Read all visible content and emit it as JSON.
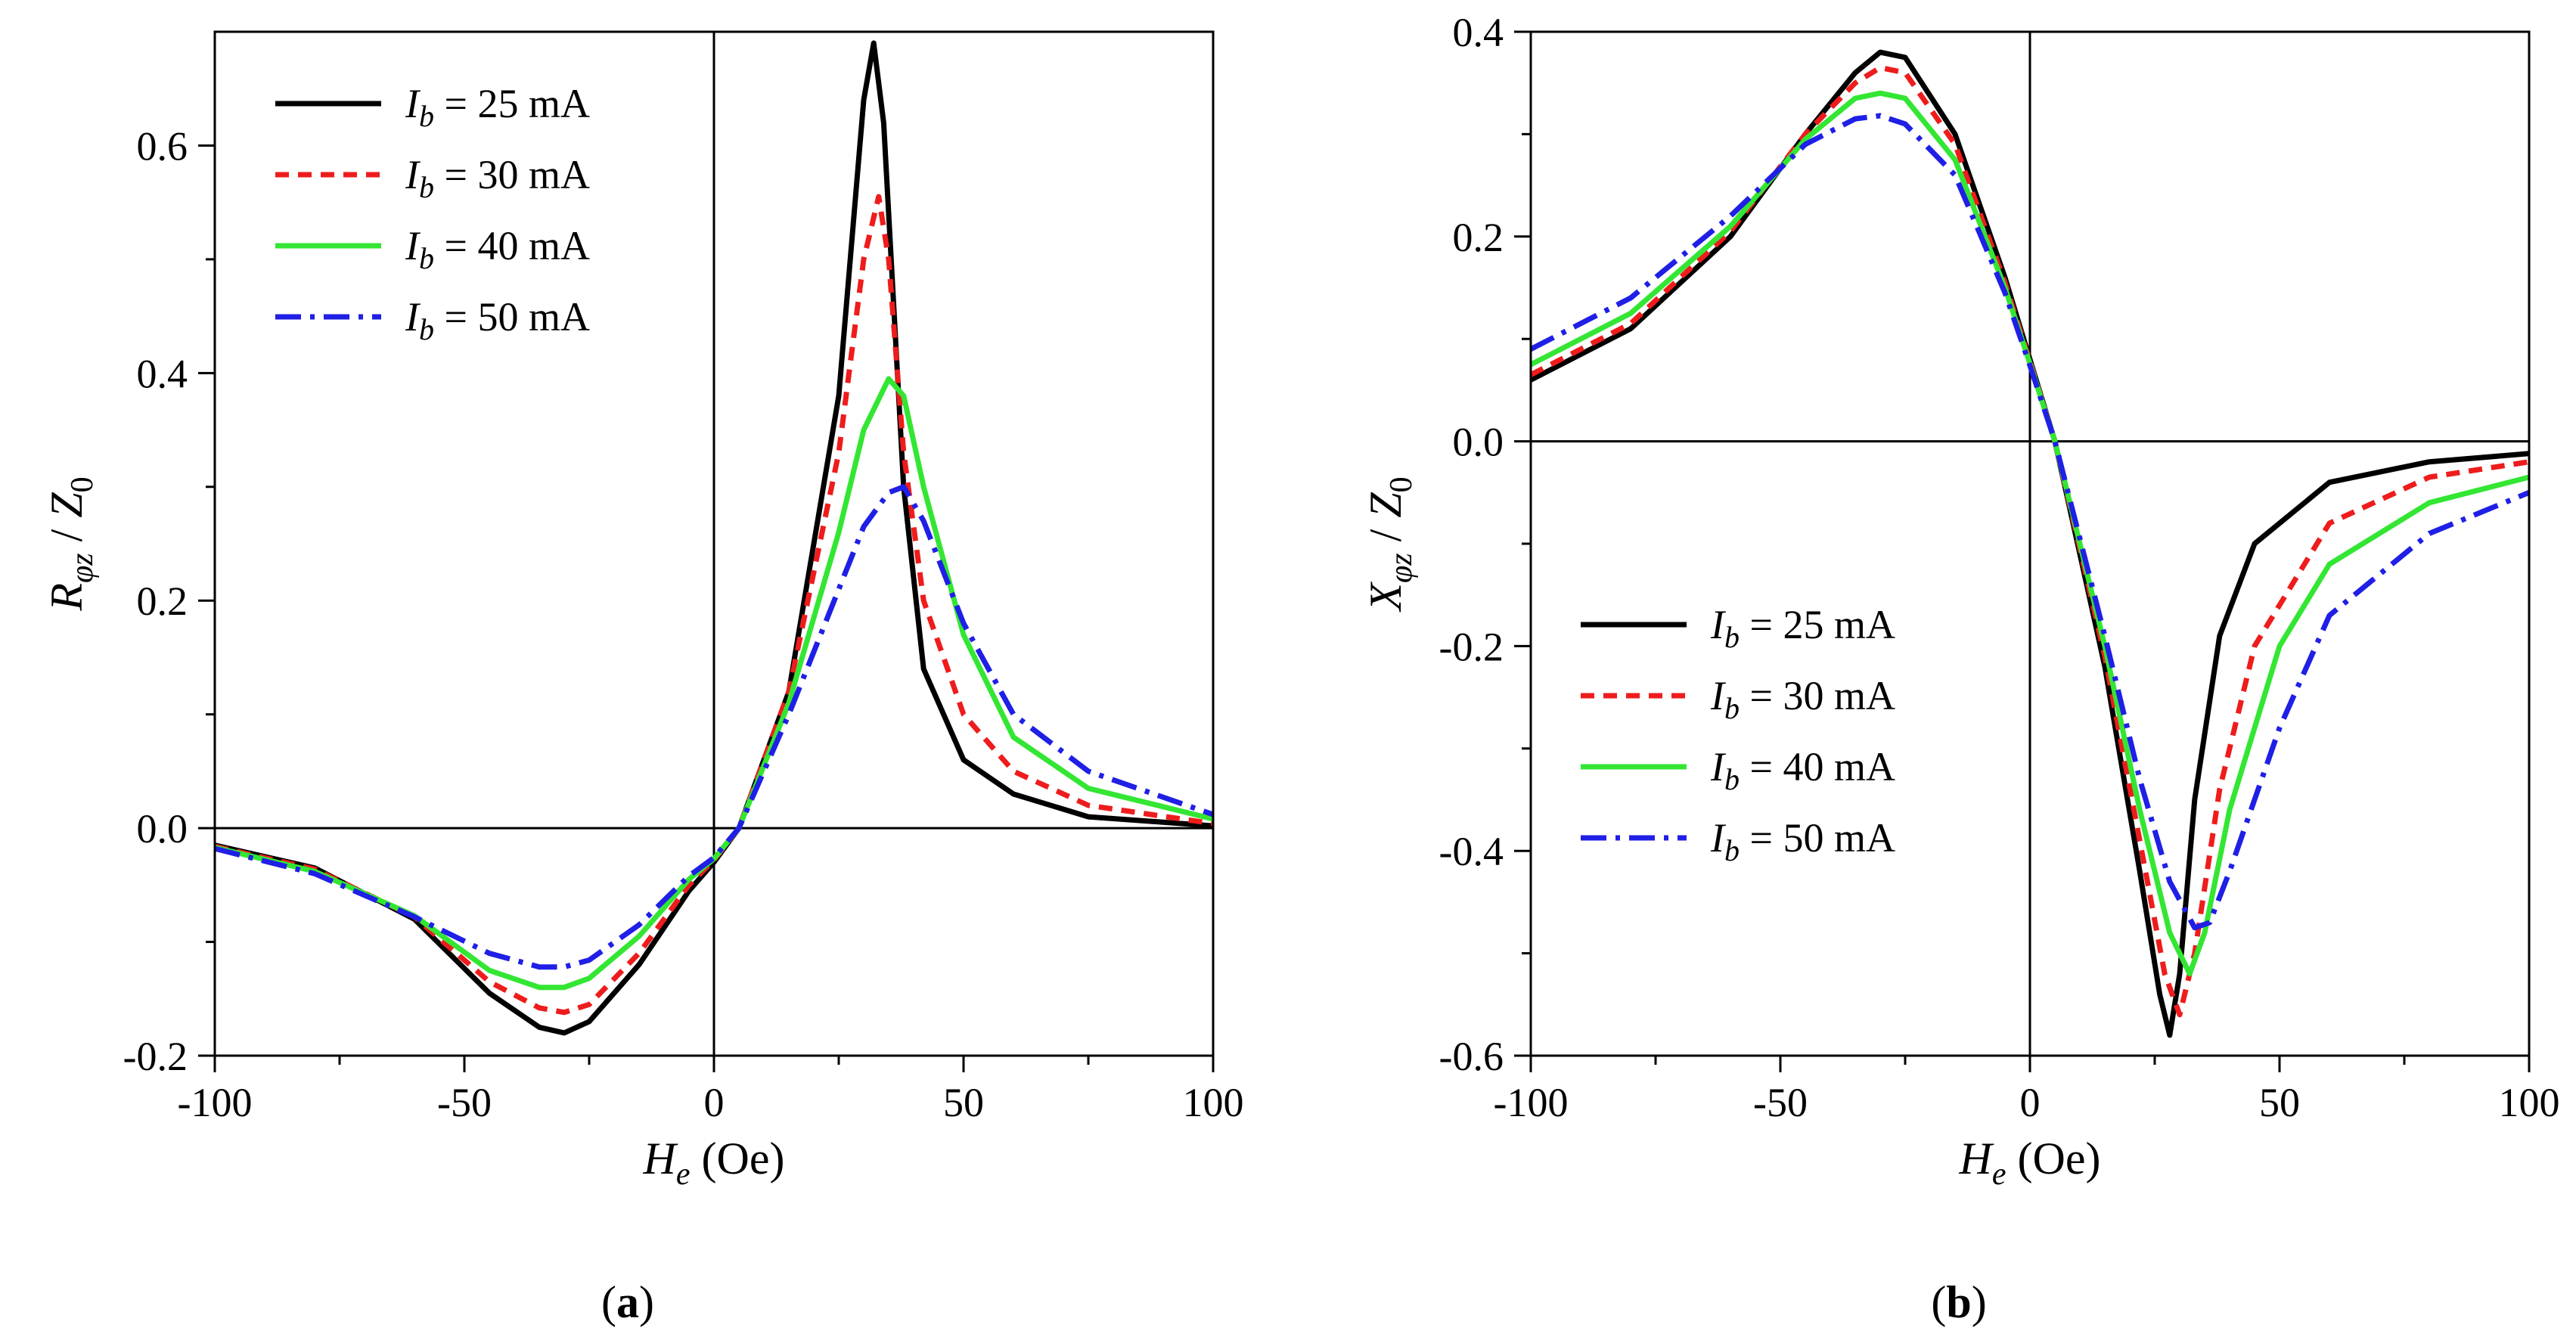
{
  "x_axis_title": {
    "symbol": "H",
    "sub": "e",
    "unit": "(Oe)"
  },
  "panels": [
    {
      "id": "a",
      "label_open": "(",
      "label_letter": "a",
      "label_close": ")",
      "y_axis_title": {
        "symbol": "R",
        "sub": "φz",
        "denom": "Z",
        "denom_sub": "0"
      }
    },
    {
      "id": "b",
      "label_open": "(",
      "label_letter": "b",
      "label_close": ")",
      "y_axis_title": {
        "symbol": "X",
        "sub": "φz",
        "denom": "Z",
        "denom_sub": "0"
      }
    }
  ],
  "legend": {
    "entries": [
      {
        "symbol": "I",
        "sub": "b",
        "value": " = 25 mA"
      },
      {
        "symbol": "I",
        "sub": "b",
        "value": " = 30 mA"
      },
      {
        "symbol": "I",
        "sub": "b",
        "value": " = 40 mA"
      },
      {
        "symbol": "I",
        "sub": "b",
        "value": " = 50 mA"
      }
    ]
  },
  "series_styles": [
    {
      "color": "#000000",
      "dash": "solid"
    },
    {
      "color": "#ee1c1c",
      "dash": "dash"
    },
    {
      "color": "#33e633",
      "dash": "solid"
    },
    {
      "color": "#1f1fe6",
      "dash": "dashdot"
    }
  ],
  "chart_data": [
    {
      "type": "line",
      "xlim": [
        -100,
        100
      ],
      "ylim": [
        -0.2,
        0.7
      ],
      "xticks": [
        -100,
        -50,
        0,
        50,
        100
      ],
      "xtick_labels": [
        "-100",
        "-50",
        "0",
        "50",
        "100"
      ],
      "yticks": [
        -0.2,
        0.0,
        0.2,
        0.4,
        0.6
      ],
      "ytick_labels": [
        "-0.2",
        "0.0",
        "0.2",
        "0.4",
        "0.6"
      ],
      "grid": false,
      "legend_position": "top-left",
      "series": [
        {
          "name": "Ib = 25 mA",
          "x": [
            -100,
            -80,
            -60,
            -45,
            -35,
            -30,
            -25,
            -15,
            -5,
            0,
            5,
            15,
            25,
            30,
            32,
            34,
            38,
            42,
            50,
            60,
            75,
            100
          ],
          "y": [
            -0.015,
            -0.035,
            -0.08,
            -0.145,
            -0.175,
            -0.18,
            -0.17,
            -0.12,
            -0.055,
            -0.03,
            0.0,
            0.12,
            0.38,
            0.64,
            0.69,
            0.62,
            0.3,
            0.14,
            0.06,
            0.03,
            0.01,
            0.002
          ]
        },
        {
          "name": "Ib = 30 mA",
          "x": [
            -100,
            -80,
            -60,
            -45,
            -35,
            -30,
            -25,
            -15,
            -5,
            0,
            5,
            15,
            25,
            30,
            33,
            35,
            38,
            42,
            50,
            60,
            75,
            100
          ],
          "y": [
            -0.016,
            -0.036,
            -0.078,
            -0.135,
            -0.158,
            -0.162,
            -0.155,
            -0.11,
            -0.05,
            -0.028,
            0.0,
            0.12,
            0.33,
            0.5,
            0.555,
            0.5,
            0.33,
            0.2,
            0.1,
            0.05,
            0.02,
            0.004
          ]
        },
        {
          "name": "Ib = 40 mA",
          "x": [
            -100,
            -80,
            -60,
            -45,
            -35,
            -30,
            -25,
            -15,
            -5,
            0,
            5,
            15,
            25,
            30,
            35,
            38,
            42,
            50,
            60,
            75,
            100
          ],
          "y": [
            -0.017,
            -0.038,
            -0.077,
            -0.125,
            -0.14,
            -0.14,
            -0.132,
            -0.095,
            -0.045,
            -0.027,
            0.0,
            0.11,
            0.26,
            0.35,
            0.395,
            0.38,
            0.3,
            0.17,
            0.08,
            0.035,
            0.008
          ]
        },
        {
          "name": "Ib = 50 mA",
          "x": [
            -100,
            -80,
            -60,
            -45,
            -35,
            -30,
            -25,
            -15,
            -5,
            0,
            5,
            15,
            25,
            30,
            35,
            38,
            42,
            50,
            60,
            75,
            100
          ],
          "y": [
            -0.018,
            -0.04,
            -0.078,
            -0.11,
            -0.122,
            -0.122,
            -0.116,
            -0.085,
            -0.042,
            -0.026,
            0.0,
            0.1,
            0.21,
            0.265,
            0.295,
            0.3,
            0.27,
            0.18,
            0.1,
            0.05,
            0.012
          ]
        }
      ]
    },
    {
      "type": "line",
      "xlim": [
        -100,
        100
      ],
      "ylim": [
        -0.6,
        0.4
      ],
      "xticks": [
        -100,
        -50,
        0,
        50,
        100
      ],
      "xtick_labels": [
        "-100",
        "-50",
        "0",
        "50",
        "100"
      ],
      "yticks": [
        -0.6,
        -0.4,
        -0.2,
        0.0,
        0.2,
        0.4
      ],
      "ytick_labels": [
        "-0.6",
        "-0.4",
        "-0.2",
        "0.0",
        "0.2",
        "0.4"
      ],
      "grid": false,
      "legend_position": "bottom-left",
      "series": [
        {
          "name": "Ib = 25 mA",
          "x": [
            -100,
            -80,
            -60,
            -45,
            -35,
            -30,
            -25,
            -15,
            -5,
            0,
            5,
            15,
            22,
            26,
            28,
            30,
            33,
            38,
            45,
            60,
            80,
            100
          ],
          "y": [
            0.06,
            0.11,
            0.2,
            0.3,
            0.36,
            0.38,
            0.375,
            0.3,
            0.16,
            0.08,
            0.0,
            -0.22,
            -0.42,
            -0.54,
            -0.58,
            -0.52,
            -0.35,
            -0.19,
            -0.1,
            -0.04,
            -0.02,
            -0.012
          ]
        },
        {
          "name": "Ib = 30 mA",
          "x": [
            -100,
            -80,
            -60,
            -45,
            -35,
            -30,
            -25,
            -15,
            -5,
            0,
            5,
            15,
            22,
            27,
            30,
            33,
            38,
            45,
            60,
            80,
            100
          ],
          "y": [
            0.065,
            0.115,
            0.205,
            0.3,
            0.35,
            0.365,
            0.36,
            0.29,
            0.155,
            0.078,
            0.0,
            -0.21,
            -0.39,
            -0.52,
            -0.56,
            -0.5,
            -0.34,
            -0.2,
            -0.08,
            -0.035,
            -0.02
          ]
        },
        {
          "name": "Ib = 40 mA",
          "x": [
            -100,
            -80,
            -60,
            -45,
            -35,
            -30,
            -25,
            -15,
            -5,
            0,
            5,
            15,
            22,
            28,
            32,
            35,
            40,
            50,
            60,
            80,
            100
          ],
          "y": [
            0.075,
            0.125,
            0.21,
            0.295,
            0.335,
            0.34,
            0.335,
            0.275,
            0.15,
            0.076,
            0.0,
            -0.2,
            -0.36,
            -0.48,
            -0.52,
            -0.48,
            -0.36,
            -0.2,
            -0.12,
            -0.06,
            -0.035
          ]
        },
        {
          "name": "Ib = 50 mA",
          "x": [
            -100,
            -80,
            -60,
            -45,
            -35,
            -30,
            -25,
            -15,
            -5,
            0,
            5,
            15,
            22,
            28,
            33,
            36,
            40,
            50,
            60,
            80,
            100
          ],
          "y": [
            0.09,
            0.14,
            0.22,
            0.29,
            0.315,
            0.318,
            0.31,
            0.26,
            0.145,
            0.074,
            0.0,
            -0.19,
            -0.33,
            -0.43,
            -0.475,
            -0.47,
            -0.42,
            -0.28,
            -0.17,
            -0.09,
            -0.05
          ]
        }
      ]
    }
  ]
}
